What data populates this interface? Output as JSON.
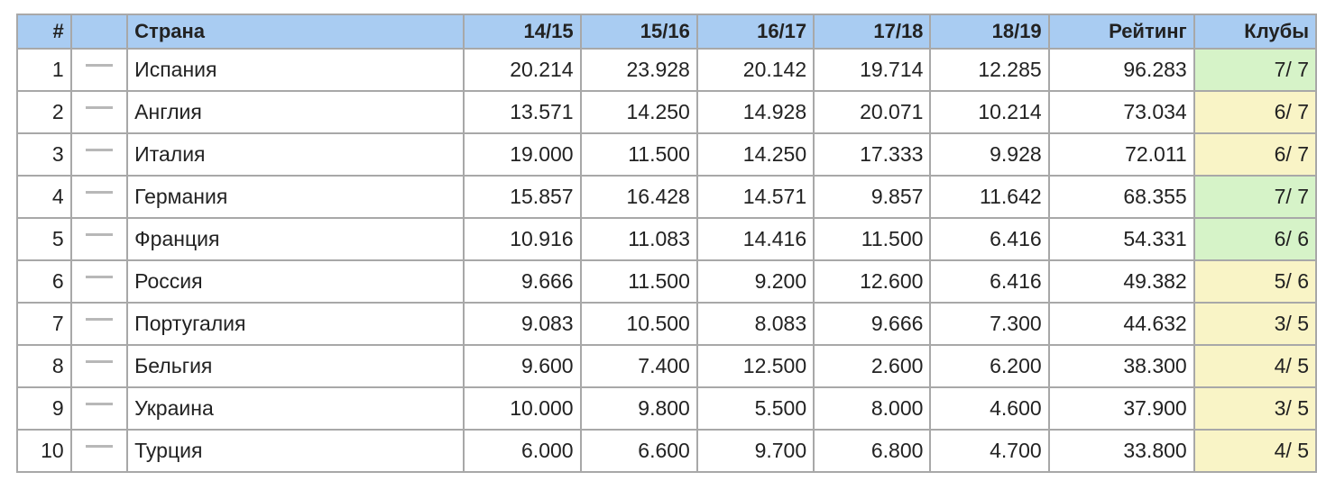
{
  "table": {
    "headers": {
      "rank": "#",
      "movement": "",
      "country": "Страна",
      "s1415": "14/15",
      "s1516": "15/16",
      "s1617": "16/17",
      "s1718": "17/18",
      "s1819": "18/19",
      "rating": "Рейтинг",
      "clubs": "Клубы"
    },
    "rows": [
      {
        "rank": "1",
        "movement_icon": "no-change-dash-icon",
        "country": "Испания",
        "s1415": "20.214",
        "s1516": "23.928",
        "s1617": "20.142",
        "s1718": "19.714",
        "s1819": "12.285",
        "rating": "96.283",
        "clubs": "7/ 7",
        "clubs_color": "#d6f3c8"
      },
      {
        "rank": "2",
        "movement_icon": "no-change-dash-icon",
        "country": "Англия",
        "s1415": "13.571",
        "s1516": "14.250",
        "s1617": "14.928",
        "s1718": "20.071",
        "s1819": "10.214",
        "rating": "73.034",
        "clubs": "6/ 7",
        "clubs_color": "#f9f4c6"
      },
      {
        "rank": "3",
        "movement_icon": "no-change-dash-icon",
        "country": "Италия",
        "s1415": "19.000",
        "s1516": "11.500",
        "s1617": "14.250",
        "s1718": "17.333",
        "s1819": "9.928",
        "rating": "72.011",
        "clubs": "6/ 7",
        "clubs_color": "#f9f4c6"
      },
      {
        "rank": "4",
        "movement_icon": "no-change-dash-icon",
        "country": "Германия",
        "s1415": "15.857",
        "s1516": "16.428",
        "s1617": "14.571",
        "s1718": "9.857",
        "s1819": "11.642",
        "rating": "68.355",
        "clubs": "7/ 7",
        "clubs_color": "#d6f3c8"
      },
      {
        "rank": "5",
        "movement_icon": "no-change-dash-icon",
        "country": "Франция",
        "s1415": "10.916",
        "s1516": "11.083",
        "s1617": "14.416",
        "s1718": "11.500",
        "s1819": "6.416",
        "rating": "54.331",
        "clubs": "6/ 6",
        "clubs_color": "#d6f3c8"
      },
      {
        "rank": "6",
        "movement_icon": "no-change-dash-icon",
        "country": "Россия",
        "s1415": "9.666",
        "s1516": "11.500",
        "s1617": "9.200",
        "s1718": "12.600",
        "s1819": "6.416",
        "rating": "49.382",
        "clubs": "5/ 6",
        "clubs_color": "#f9f4c6"
      },
      {
        "rank": "7",
        "movement_icon": "no-change-dash-icon",
        "country": "Португалия",
        "s1415": "9.083",
        "s1516": "10.500",
        "s1617": "8.083",
        "s1718": "9.666",
        "s1819": "7.300",
        "rating": "44.632",
        "clubs": "3/ 5",
        "clubs_color": "#f9f4c6"
      },
      {
        "rank": "8",
        "movement_icon": "no-change-dash-icon",
        "country": "Бельгия",
        "s1415": "9.600",
        "s1516": "7.400",
        "s1617": "12.500",
        "s1718": "2.600",
        "s1819": "6.200",
        "rating": "38.300",
        "clubs": "4/ 5",
        "clubs_color": "#f9f4c6"
      },
      {
        "rank": "9",
        "movement_icon": "no-change-dash-icon",
        "country": "Украина",
        "s1415": "10.000",
        "s1516": "9.800",
        "s1617": "5.500",
        "s1718": "8.000",
        "s1819": "4.600",
        "rating": "37.900",
        "clubs": "3/ 5",
        "clubs_color": "#f9f4c6"
      },
      {
        "rank": "10",
        "movement_icon": "no-change-dash-icon",
        "country": "Турция",
        "s1415": "6.000",
        "s1516": "6.600",
        "s1617": "9.700",
        "s1718": "6.800",
        "s1819": "4.700",
        "rating": "33.800",
        "clubs": "4/ 5",
        "clubs_color": "#f9f4c6"
      }
    ],
    "colors": {
      "header_bg": "#a9ccf2",
      "border": "#a8a8a8",
      "clubs_full": "#d6f3c8",
      "clubs_partial": "#f9f4c6"
    }
  }
}
